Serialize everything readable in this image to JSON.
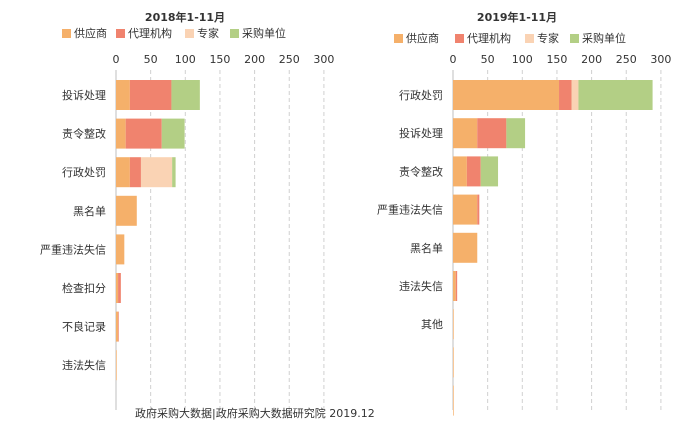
{
  "colors": {
    "supplier": "#F5B06A",
    "agency": "#F0836E",
    "expert": "#FAD3B4",
    "purchaser": "#B3CF85",
    "grid": "#D0D0D0",
    "text": "#333333"
  },
  "source_note": "政府采购大数据|政府采购大数据研究院 2019.12",
  "chart_data": [
    {
      "type": "bar",
      "orientation": "horizontal",
      "stacked": true,
      "title": "2018年1-11月",
      "legend": [
        "供应商",
        "代理机构",
        "专家",
        "采购单位"
      ],
      "legend_position": "top",
      "xlim": [
        0,
        300
      ],
      "xticks": [
        "0",
        "50",
        "100",
        "150",
        "200",
        "250",
        "300"
      ],
      "grid": true,
      "categories": [
        "投诉处理",
        "责令整改",
        "行政处罚",
        "黑名单",
        "严重违法失信",
        "检查扣分",
        "不良记录",
        "违法失信"
      ],
      "series": [
        {
          "name": "供应商",
          "color_key": "supplier",
          "values": [
            20,
            14,
            20,
            30,
            12,
            3,
            3,
            1
          ]
        },
        {
          "name": "代理机构",
          "color_key": "agency",
          "values": [
            60,
            52,
            16,
            0,
            0,
            4,
            1,
            0
          ]
        },
        {
          "name": "专家",
          "color_key": "expert",
          "values": [
            0,
            0,
            45,
            0,
            0,
            0,
            0,
            0
          ]
        },
        {
          "name": "采购单位",
          "color_key": "purchaser",
          "values": [
            41,
            33,
            5,
            0,
            0,
            0,
            0,
            0
          ]
        }
      ]
    },
    {
      "type": "bar",
      "orientation": "horizontal",
      "stacked": true,
      "title": "2019年1-11月",
      "legend": [
        "供应商",
        "代理机构",
        "专家",
        "采购单位"
      ],
      "legend_position": "top",
      "xlim": [
        0,
        300
      ],
      "xticks": [
        "0",
        "50",
        "100",
        "150",
        "200",
        "250",
        "300"
      ],
      "grid": true,
      "categories": [
        "行政处罚",
        "投诉处理",
        "责令整改",
        "严重违法失信",
        "黑名单",
        "违法失信",
        "其他",
        "",
        ""
      ],
      "series": [
        {
          "name": "供应商",
          "color_key": "supplier",
          "values": [
            153,
            35,
            20,
            35,
            35,
            4,
            1,
            1,
            1
          ]
        },
        {
          "name": "代理机构",
          "color_key": "agency",
          "values": [
            18,
            42,
            20,
            3,
            0,
            2,
            0,
            0,
            0
          ]
        },
        {
          "name": "专家",
          "color_key": "expert",
          "values": [
            10,
            0,
            0,
            0,
            0,
            0,
            0,
            0,
            0
          ]
        },
        {
          "name": "采购单位",
          "color_key": "purchaser",
          "values": [
            107,
            27,
            25,
            0,
            0,
            0,
            0,
            0,
            0
          ]
        }
      ]
    }
  ]
}
